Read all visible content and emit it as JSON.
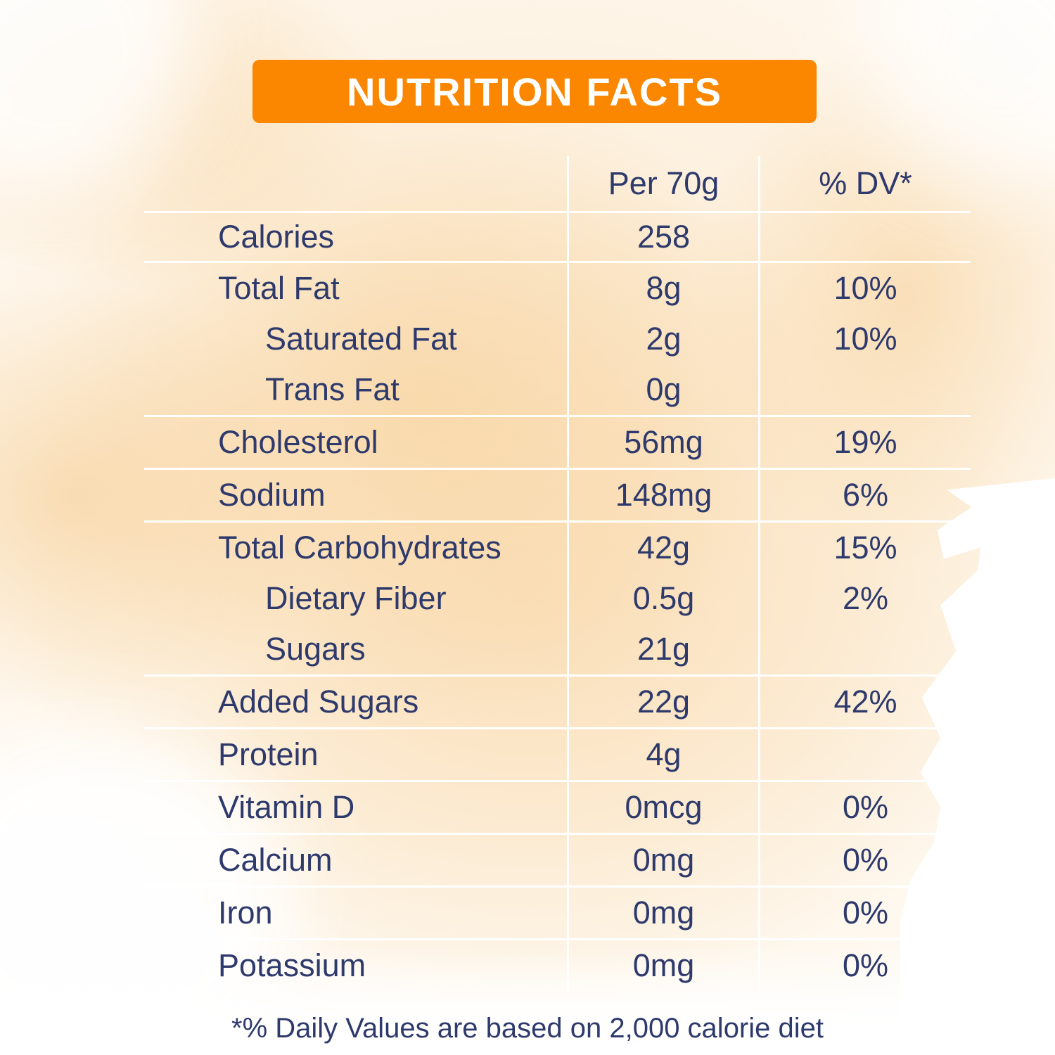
{
  "title": "NUTRITION FACTS",
  "colors": {
    "banner_orange": "#fb8600",
    "text_navy": "#2e3a6c",
    "divider": "#ffffff",
    "background_peach": "#fbe8cd"
  },
  "table": {
    "header": {
      "amount": "Per 70g",
      "dv": "% DV*"
    },
    "rows": [
      {
        "label": "Calories",
        "amount": "258",
        "dv": ""
      },
      {
        "label": "Total Fat",
        "amount": "8g",
        "dv": "10%"
      },
      {
        "label": "Saturated Fat",
        "amount": "2g",
        "dv": "10%"
      },
      {
        "label": "Trans Fat",
        "amount": "0g",
        "dv": ""
      },
      {
        "label": "Cholesterol",
        "amount": "56mg",
        "dv": "19%"
      },
      {
        "label": "Sodium",
        "amount": "148mg",
        "dv": "6%"
      },
      {
        "label": "Total Carbohydrates",
        "amount": "42g",
        "dv": "15%"
      },
      {
        "label": "Dietary Fiber",
        "amount": "0.5g",
        "dv": "2%"
      },
      {
        "label": "Sugars",
        "amount": "21g",
        "dv": ""
      },
      {
        "label": "Added Sugars",
        "amount": "22g",
        "dv": "42%"
      },
      {
        "label": "Protein",
        "amount": "4g",
        "dv": ""
      },
      {
        "label": "Vitamin D",
        "amount": "0mcg",
        "dv": "0%"
      },
      {
        "label": "Calcium",
        "amount": "0mg",
        "dv": "0%"
      },
      {
        "label": "Iron",
        "amount": "0mg",
        "dv": "0%"
      },
      {
        "label": "Potassium",
        "amount": "0mg",
        "dv": "0%"
      }
    ]
  },
  "footnote": "*% Daily Values are based on 2,000 calorie diet"
}
